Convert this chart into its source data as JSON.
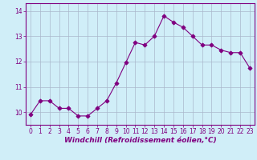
{
  "x": [
    0,
    1,
    2,
    3,
    4,
    5,
    6,
    7,
    8,
    9,
    10,
    11,
    12,
    13,
    14,
    15,
    16,
    17,
    18,
    19,
    20,
    21,
    22,
    23
  ],
  "y": [
    9.9,
    10.45,
    10.45,
    10.15,
    10.15,
    9.85,
    9.85,
    10.15,
    10.45,
    11.15,
    11.95,
    12.75,
    12.65,
    13.0,
    13.8,
    13.55,
    13.35,
    13.0,
    12.65,
    12.65,
    12.45,
    12.35,
    12.35,
    11.75
  ],
  "line_color": "#800080",
  "marker": "D",
  "markersize": 2.5,
  "linewidth": 0.8,
  "bg_color": "#d0eef8",
  "grid_color": "#aab8cc",
  "xlabel": "Windchill (Refroidissement éolien,°C)",
  "xlabel_fontsize": 6.5,
  "tick_fontsize": 5.5,
  "ylim": [
    9.5,
    14.3
  ],
  "xlim": [
    -0.5,
    23.5
  ],
  "yticks": [
    10,
    11,
    12,
    13,
    14
  ],
  "xticks": [
    0,
    1,
    2,
    3,
    4,
    5,
    6,
    7,
    8,
    9,
    10,
    11,
    12,
    13,
    14,
    15,
    16,
    17,
    18,
    19,
    20,
    21,
    22,
    23
  ]
}
